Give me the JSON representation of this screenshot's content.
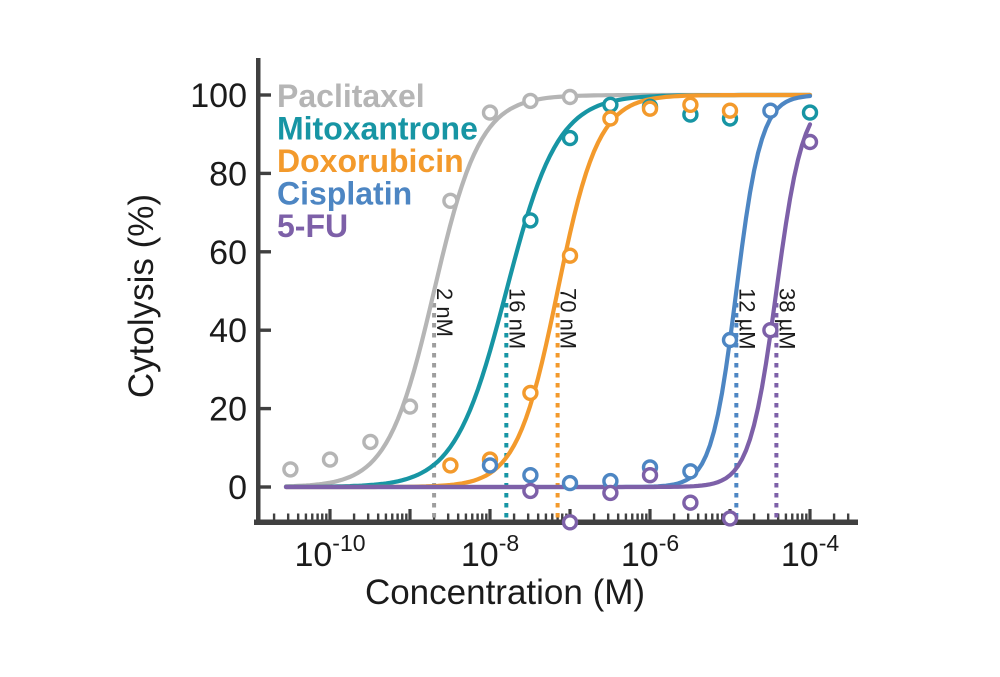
{
  "figure": {
    "background": "#ffffff",
    "axis_color": "#404040",
    "text_color": "#1b1b1b"
  },
  "chart_data": {
    "type": "scatter",
    "subtype": "dose-response-curves",
    "title": "",
    "xlabel": "Concentration (M)",
    "ylabel": "Cytolysis (%)",
    "x_scale": "log10",
    "xlim_log10": [
      -10.9,
      -3.45
    ],
    "ylim": [
      -10,
      109
    ],
    "y_ticks": [
      0,
      20,
      40,
      60,
      80,
      100
    ],
    "x_decade_ticks_log10": [
      -10,
      -9,
      -8,
      -7,
      -6,
      -5,
      -4
    ],
    "x_tick_labels": [
      {
        "base": "10",
        "exponent": "-10",
        "log10": -10
      },
      {
        "base": "10",
        "exponent": "-8",
        "log10": -8
      },
      {
        "base": "10",
        "exponent": "-6",
        "log10": -6
      },
      {
        "base": "10",
        "exponent": "-4",
        "log10": -4
      }
    ],
    "grid": false,
    "legend_position": "top-left-inside",
    "series": [
      {
        "name": "Paclitaxel",
        "color": "#b5b5b5",
        "dotted_color": "#9e9e9e",
        "ec50_label": "2 nM",
        "ec50_molar": 2e-09,
        "hill": 1.5,
        "top": 100,
        "bottom": 0,
        "points_molar": [
          3.2e-11,
          1e-10,
          3.2e-10,
          1e-09,
          3.2e-09,
          1e-08,
          3.2e-08,
          1e-07
        ],
        "points_pct": [
          4.5,
          7,
          11.5,
          20.5,
          73,
          95.5,
          98.5,
          99.5
        ]
      },
      {
        "name": "Mitoxantrone",
        "color": "#1795a4",
        "dotted_color": "#1795a4",
        "ec50_label": "16 nM",
        "ec50_molar": 1.6e-08,
        "hill": 1.35,
        "top": 100,
        "bottom": 0,
        "points_molar": [
          3.2e-08,
          1e-07,
          3.2e-07,
          1e-06,
          3.2e-06,
          1e-05,
          0.0001
        ],
        "points_pct": [
          68,
          89,
          97.5,
          97,
          95,
          94,
          95.5
        ]
      },
      {
        "name": "Doxorubicin",
        "color": "#f39a2c",
        "dotted_color": "#f39a2c",
        "ec50_label": "70 nM",
        "ec50_molar": 7e-08,
        "hill": 1.7,
        "top": 100,
        "bottom": 0,
        "points_molar": [
          3.2e-09,
          1e-08,
          3.2e-08,
          1e-07,
          3.2e-07,
          1e-06,
          3.2e-06,
          1e-05
        ],
        "points_pct": [
          5.5,
          7,
          24,
          59,
          94,
          96.5,
          97.5,
          96
        ]
      },
      {
        "name": "Cisplatin",
        "color": "#4d86c3",
        "dotted_color": "#4d86c3",
        "ec50_label": "12 µM",
        "ec50_molar": 1.2e-05,
        "hill": 2.8,
        "top": 100,
        "bottom": 0,
        "points_molar": [
          1e-08,
          3.2e-08,
          1e-07,
          3.2e-07,
          1e-06,
          3.2e-06,
          1e-05,
          3.2e-05
        ],
        "points_pct": [
          5.5,
          3,
          1,
          1.5,
          5,
          4,
          37.5,
          96
        ]
      },
      {
        "name": "5-FU",
        "color": "#7d60a8",
        "dotted_color": "#7d60a8",
        "ec50_label": "38 µM",
        "ec50_molar": 3.8e-05,
        "hill": 2.6,
        "top": 100,
        "bottom": 0,
        "points_molar": [
          3.2e-08,
          1e-07,
          3.2e-07,
          1e-06,
          3.2e-06,
          1e-05,
          3.2e-05,
          0.0001
        ],
        "points_pct": [
          -1,
          -9,
          -1.5,
          3,
          -4,
          -8,
          40,
          88
        ]
      }
    ]
  }
}
